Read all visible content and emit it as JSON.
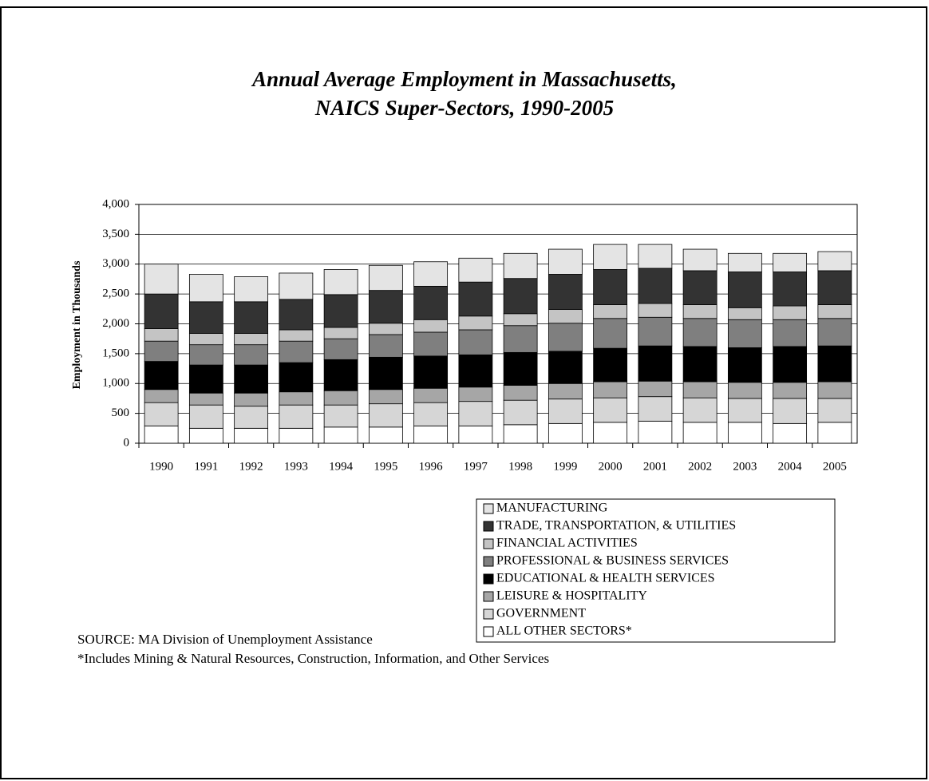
{
  "chart_data": {
    "type": "stacked-bar",
    "title": [
      "Annual Average Employment in Massachusetts,",
      "NAICS Super-Sectors, 1990-2005"
    ],
    "y_label": "Employment in Thousands",
    "categories": [
      "1990",
      "1991",
      "1992",
      "1993",
      "1994",
      "1995",
      "1996",
      "1997",
      "1998",
      "1999",
      "2000",
      "2001",
      "2002",
      "2003",
      "2004",
      "2005"
    ],
    "ylim": [
      0,
      4000
    ],
    "yticks": [
      0,
      500,
      {
        "value": 1000,
        "label": "1,000"
      },
      {
        "value": 1500,
        "label": "1,500"
      },
      {
        "value": 2000,
        "label": "2,000"
      },
      {
        "value": 2500,
        "label": "2,500"
      },
      {
        "value": 3000,
        "label": "3,000"
      },
      {
        "value": 3500,
        "label": "3,500"
      },
      {
        "value": 4000,
        "label": "4,000"
      }
    ],
    "grid": true,
    "series": [
      {
        "name": "MANUFACTURING",
        "color": "#e4e4e4",
        "values": [
          500,
          460,
          420,
          440,
          420,
          420,
          410,
          400,
          420,
          420,
          420,
          400,
          360,
          310,
          310,
          320
        ]
      },
      {
        "name": "TRADE, TRANSPORTATION, & UTILITIES",
        "color": "#333333",
        "values": [
          580,
          530,
          530,
          510,
          550,
          550,
          560,
          570,
          590,
          590,
          590,
          590,
          570,
          600,
          570,
          570
        ]
      },
      {
        "name": "FINANCIAL ACTIVITIES",
        "color": "#c4c4c4",
        "values": [
          210,
          190,
          190,
          190,
          190,
          190,
          210,
          230,
          200,
          230,
          230,
          230,
          230,
          200,
          230,
          230
        ]
      },
      {
        "name": "PROFESSIONAL & BUSINESS SERVICES",
        "color": "#7f7f7f",
        "values": [
          340,
          340,
          340,
          360,
          350,
          380,
          400,
          420,
          450,
          470,
          500,
          480,
          470,
          470,
          450,
          460
        ]
      },
      {
        "name": "EDUCATIONAL & HEALTH SERVICES",
        "color": "#000000",
        "values": [
          470,
          470,
          470,
          490,
          520,
          540,
          540,
          540,
          550,
          540,
          560,
          590,
          590,
          580,
          600,
          600
        ]
      },
      {
        "name": "LEISURE & HOSPITALITY",
        "color": "#a6a6a6",
        "values": [
          220,
          200,
          220,
          220,
          240,
          240,
          240,
          240,
          250,
          260,
          270,
          260,
          270,
          270,
          270,
          280
        ]
      },
      {
        "name": "GOVERNMENT",
        "color": "#d6d6d6",
        "values": [
          390,
          390,
          370,
          390,
          370,
          390,
          390,
          410,
          410,
          410,
          410,
          410,
          410,
          400,
          420,
          400
        ]
      },
      {
        "name": "ALL OTHER SECTORS*",
        "color": "#ffffff",
        "values": [
          290,
          250,
          250,
          250,
          270,
          270,
          290,
          290,
          310,
          330,
          350,
          370,
          350,
          350,
          330,
          350
        ]
      }
    ],
    "source": "SOURCE:  MA Division of Unemployment Assistance",
    "footnote": "*Includes Mining & Natural Resources, Construction, Information, and Other Services"
  }
}
